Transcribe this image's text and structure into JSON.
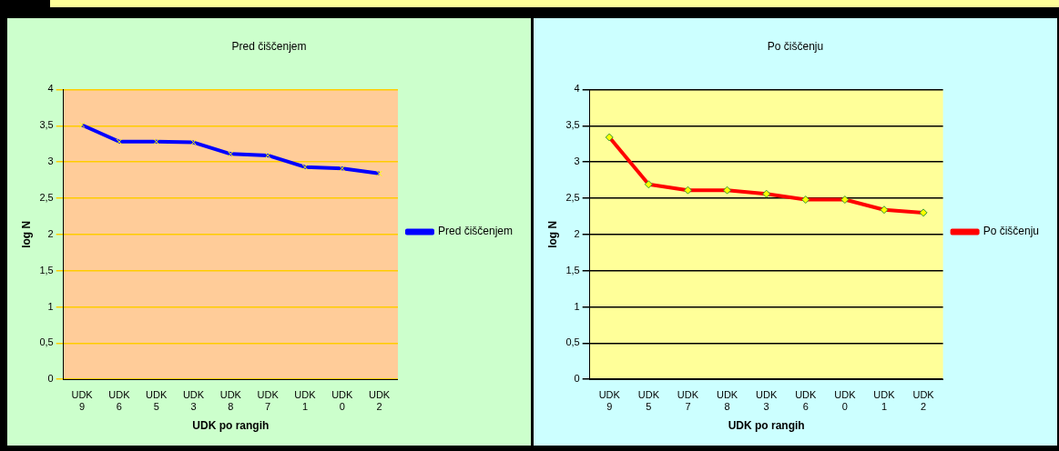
{
  "chart_data": [
    {
      "type": "line",
      "title": "Pred čiščenjem",
      "xlabel": "UDK po rangih",
      "ylabel": "log N",
      "categories": [
        "UDK 9",
        "UDK 6",
        "UDK 5",
        "UDK 3",
        "UDK 8",
        "UDK 7",
        "UDK 1",
        "UDK 0",
        "UDK 2"
      ],
      "series": [
        {
          "name": "Pred čiščenjem",
          "color": "#0000ff",
          "values": [
            3.51,
            3.28,
            3.28,
            3.27,
            3.11,
            3.09,
            2.93,
            2.91,
            2.84
          ]
        }
      ],
      "ylim": [
        0,
        4
      ],
      "yticks": [
        0,
        {
          "value": 0.5,
          "label": "0,5"
        },
        1,
        {
          "value": 1.5,
          "label": "1,5"
        },
        2,
        {
          "value": 2.5,
          "label": "2,5"
        },
        3,
        {
          "value": 3.5,
          "label": "3,5"
        },
        4
      ],
      "grid": "y",
      "legend": "right",
      "marker": "cross"
    },
    {
      "type": "line",
      "title": "Po čiščenju",
      "xlabel": "UDK po rangih",
      "ylabel": "log N",
      "categories": [
        "UDK 9",
        "UDK 5",
        "UDK 7",
        "UDK 8",
        "UDK 3",
        "UDK 6",
        "UDK 0",
        "UDK 1",
        "UDK 2"
      ],
      "series": [
        {
          "name": "Po čiščenju",
          "color": "#ff0000",
          "values": [
            3.34,
            2.69,
            2.61,
            2.61,
            2.56,
            2.48,
            2.48,
            2.34,
            2.3
          ]
        }
      ],
      "ylim": [
        0,
        4
      ],
      "yticks": [
        0,
        {
          "value": 0.5,
          "label": "0,5"
        },
        1,
        {
          "value": 1.5,
          "label": "1,5"
        },
        2,
        {
          "value": 2.5,
          "label": "2,5"
        },
        3,
        {
          "value": 3.5,
          "label": "3,5"
        },
        4
      ],
      "grid": "y",
      "legend": "right",
      "marker": "diamond"
    }
  ]
}
